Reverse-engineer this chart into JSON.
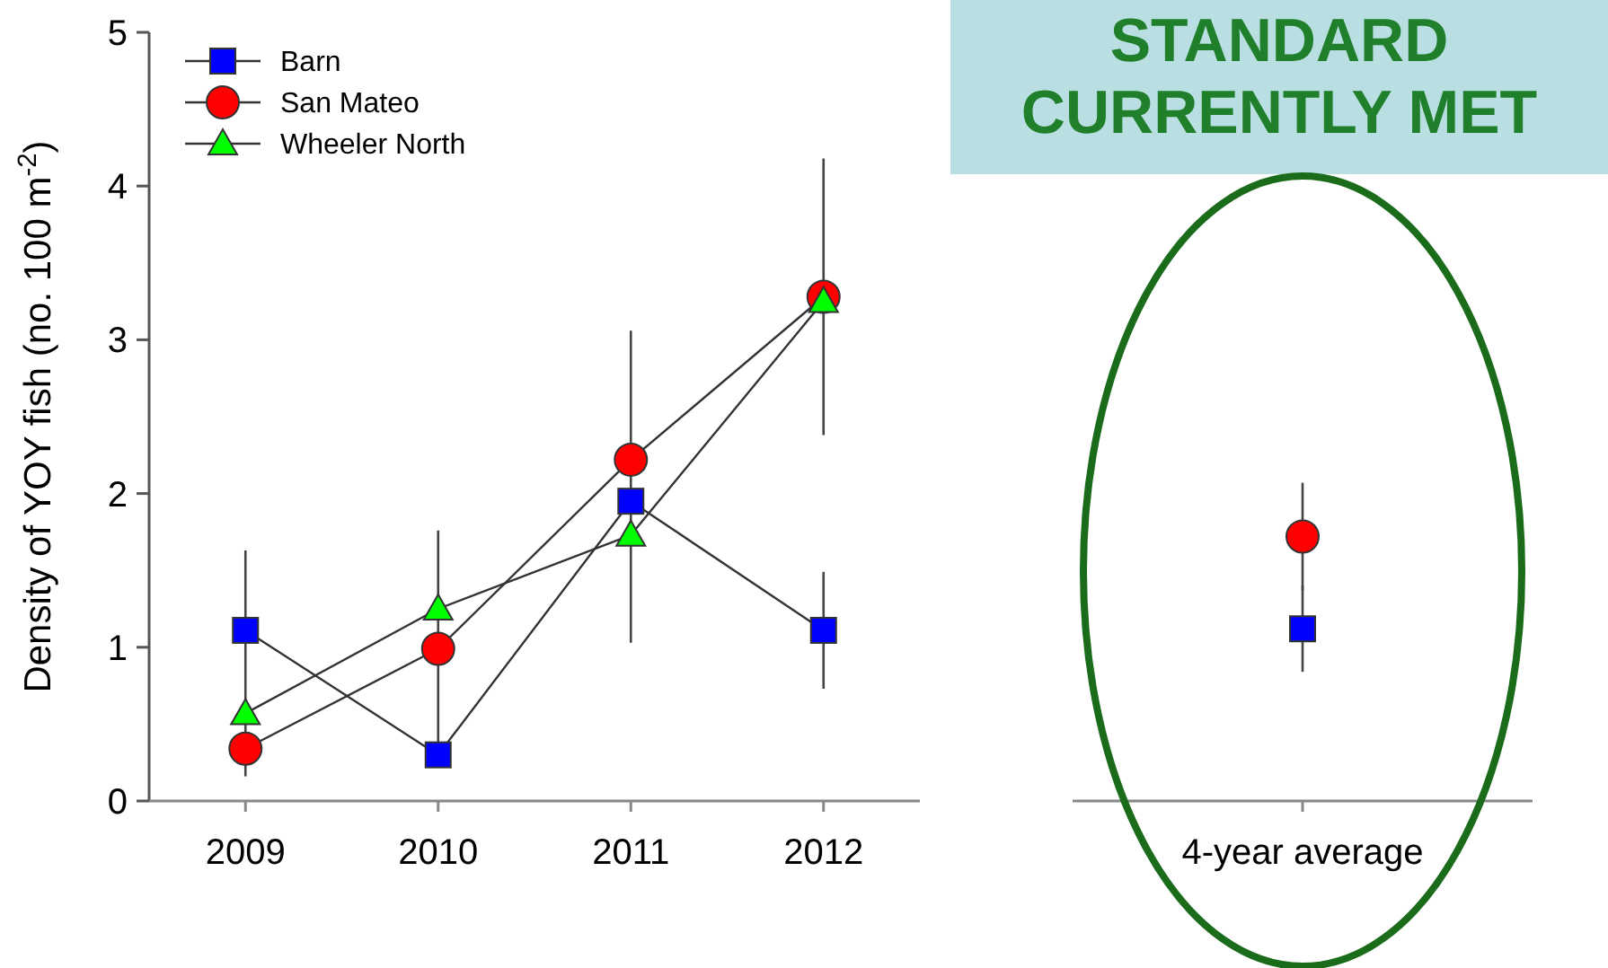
{
  "chart_data": [
    {
      "type": "line",
      "ylabel": "Density of YOY fish (no. 100 m$^{-2}$)",
      "categories": [
        "2009",
        "2010",
        "2011",
        "2012"
      ],
      "ylim": [
        0,
        5
      ],
      "yticks": [
        0,
        1,
        2,
        3,
        4,
        5
      ],
      "legend": "top left",
      "series": [
        {
          "name": "Barn",
          "color": "#0000ff",
          "marker": "square",
          "values": [
            1.11,
            0.3,
            1.95,
            1.11
          ],
          "errors": [
            0.52,
            null,
            null,
            0.38
          ]
        },
        {
          "name": "San Mateo",
          "color": "#ff0000",
          "marker": "circle",
          "values": [
            0.34,
            0.99,
            2.22,
            3.28
          ],
          "errors": [
            0.18,
            0.77,
            [
              1.03,
              3.06
            ],
            0.9
          ]
        },
        {
          "name": "Wheeler North",
          "color": "#00ff00",
          "marker": "triangle",
          "values": [
            0.57,
            1.25,
            1.73,
            3.25
          ],
          "errors": [
            null,
            null,
            null,
            null
          ]
        }
      ]
    },
    {
      "type": "scatter",
      "categories": [
        "4-year average"
      ],
      "ylim": [
        0,
        5
      ],
      "tick_labels": "x",
      "annotations": [
        "STANDARD CURRENTLY MET"
      ],
      "series": [
        {
          "color": "#0000ff",
          "marker": "square",
          "values": [
            1.12
          ],
          "errors": [
            0.28
          ]
        },
        {
          "color": "#ff0000",
          "marker": "circle",
          "values": [
            1.72
          ],
          "errors": [
            0.35
          ]
        }
      ]
    }
  ]
}
